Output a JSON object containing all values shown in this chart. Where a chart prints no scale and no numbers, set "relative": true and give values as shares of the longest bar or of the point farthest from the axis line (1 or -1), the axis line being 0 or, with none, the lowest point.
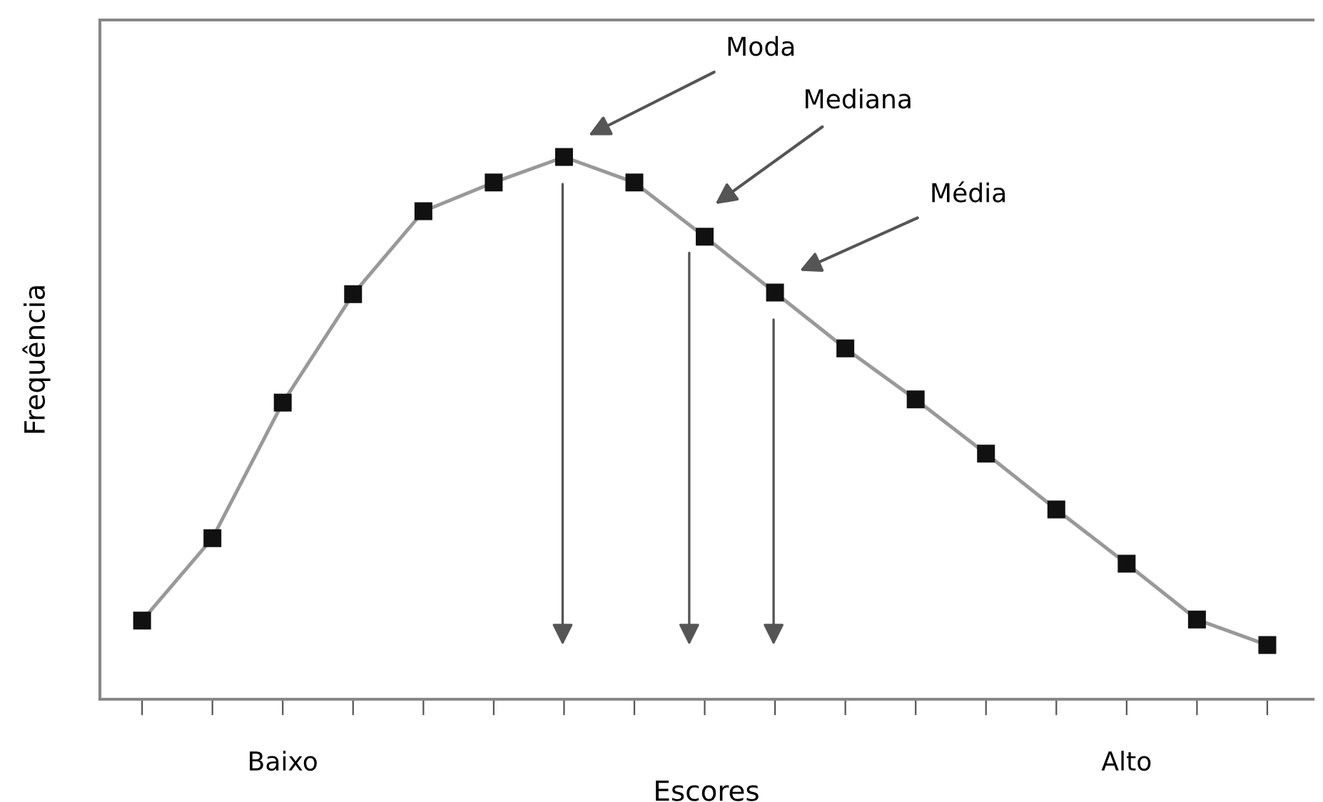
{
  "chart_data": {
    "type": "line",
    "relative": true,
    "xlabel": "Escores",
    "ylabel": "Frequência",
    "categories": [
      null,
      null,
      "Baixo",
      null,
      null,
      null,
      null,
      null,
      null,
      null,
      null,
      null,
      null,
      null,
      "Alto",
      null,
      null
    ],
    "series": [
      {
        "color": "#999999",
        "values": [
          0.145,
          0.297,
          0.547,
          0.747,
          0.9,
          0.953,
          1,
          0.953,
          0.853,
          0.75,
          0.647,
          0.553,
          0.453,
          0.35,
          0.25,
          0.147,
          0.1
        ]
      }
    ],
    "marker": "square",
    "line_style": "solid",
    "grid": false,
    "legend": false,
    "annotations": [
      "Moda",
      "Mediana",
      "Média"
    ]
  }
}
